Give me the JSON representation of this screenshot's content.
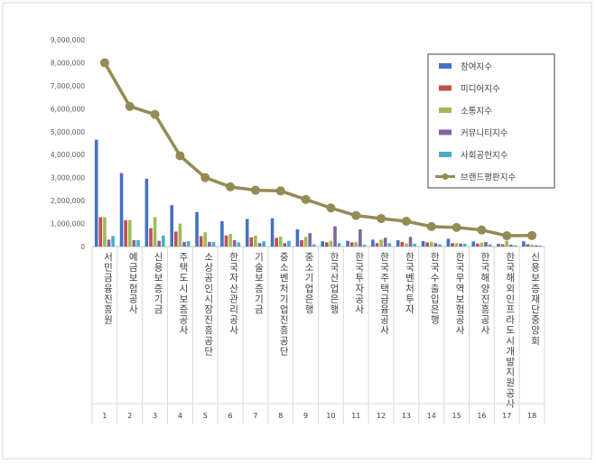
{
  "chart_data": {
    "type": "bar",
    "categories": [
      "서민금융진흥원",
      "예금보험공사",
      "신용보증기금",
      "주택도시보증공사",
      "소상공인시장진흥공단",
      "한국자산관리공사",
      "기술보증기금",
      "중소벤처기업진흥공단",
      "중소기업은행",
      "한국산업은행",
      "한국투자공사",
      "한국주택금융공사",
      "한국벤처투자",
      "한국수출입은행",
      "한국무역보험공사",
      "한국해양진흥공사",
      "한국해외인프라도시개발지원공사",
      "신용보증재단중앙회"
    ],
    "index_labels": [
      "1",
      "2",
      "3",
      "4",
      "5",
      "6",
      "7",
      "8",
      "9",
      "10",
      "11",
      "12",
      "13",
      "14",
      "15",
      "16",
      "17",
      "18"
    ],
    "ylim": [
      0,
      9000000
    ],
    "y_ticks": [
      "0",
      "1,000,000",
      "2,000,000",
      "3,000,000",
      "4,000,000",
      "5,000,000",
      "6,000,000",
      "7,000,000",
      "8,000,000",
      "9,000,000"
    ],
    "legend_position": "top-right",
    "grid": false,
    "series": [
      {
        "name": "참여지수",
        "color": "#4472c4",
        "kind": "bar",
        "values": [
          4650000,
          3200000,
          2950000,
          1800000,
          1500000,
          1100000,
          1200000,
          1230000,
          750000,
          230000,
          250000,
          300000,
          280000,
          240000,
          340000,
          220000,
          120000,
          230000
        ]
      },
      {
        "name": "미디어지수",
        "color": "#c0504d",
        "kind": "bar",
        "values": [
          1280000,
          1150000,
          800000,
          650000,
          450000,
          480000,
          400000,
          380000,
          280000,
          180000,
          180000,
          150000,
          200000,
          180000,
          150000,
          130000,
          100000,
          100000
        ]
      },
      {
        "name": "소통지수",
        "color": "#9bbb59",
        "kind": "bar",
        "values": [
          1270000,
          1150000,
          1280000,
          1000000,
          620000,
          550000,
          480000,
          430000,
          420000,
          250000,
          200000,
          300000,
          130000,
          200000,
          150000,
          170000,
          250000,
          80000
        ]
      },
      {
        "name": "커뮤니티지수",
        "color": "#8064a2",
        "kind": "bar",
        "values": [
          300000,
          280000,
          250000,
          200000,
          200000,
          280000,
          150000,
          150000,
          580000,
          880000,
          750000,
          380000,
          420000,
          150000,
          130000,
          200000,
          80000,
          50000
        ]
      },
      {
        "name": "사회공헌지수",
        "color": "#4bacc6",
        "kind": "bar",
        "values": [
          460000,
          280000,
          480000,
          230000,
          200000,
          180000,
          230000,
          250000,
          100000,
          150000,
          80000,
          150000,
          120000,
          100000,
          120000,
          100000,
          50000,
          40000
        ]
      },
      {
        "name": "브랜드평판지수",
        "color": "#948a54",
        "kind": "line",
        "values": [
          8000000,
          6100000,
          5750000,
          3950000,
          3000000,
          2600000,
          2450000,
          2420000,
          2050000,
          1680000,
          1350000,
          1220000,
          1100000,
          870000,
          830000,
          720000,
          470000,
          480000
        ]
      }
    ]
  }
}
